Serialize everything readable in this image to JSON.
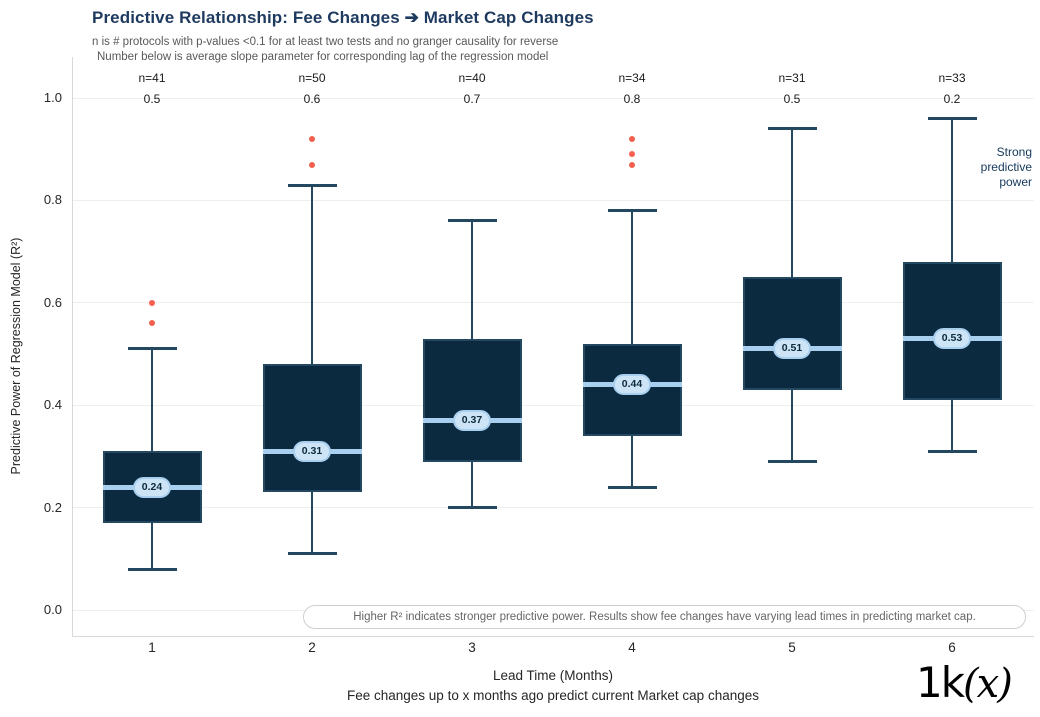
{
  "header": {
    "title": "Predictive Relationship: Fee Changes ➔ Market Cap Changes",
    "subtitle_line1": "n is # protocols with p-values <0.1 for at least two tests and no granger causality for reverse",
    "subtitle_line2": "Number below is average slope parameter for corresponding lag of the regression model"
  },
  "chart_data": {
    "type": "box",
    "title": "Predictive Relationship: Fee Changes ➔ Market Cap Changes",
    "xlabel": "Lead Time (Months)",
    "xlabel_sub": "Fee changes up to x months ago predict current Market cap changes",
    "ylabel": "Predictive Power of Regression Model (R²)",
    "ylim": [
      0.0,
      1.0
    ],
    "yticks": [
      0.0,
      0.2,
      0.4,
      0.6,
      0.8,
      1.0
    ],
    "grid": true,
    "legend_position": "none",
    "categories": [
      "1",
      "2",
      "3",
      "4",
      "5",
      "6"
    ],
    "boxes": [
      {
        "x": "1",
        "n_label": "n=41",
        "slope_label": "0.5",
        "whisker_low": 0.08,
        "q1": 0.17,
        "median": 0.24,
        "q3": 0.31,
        "whisker_high": 0.51,
        "outliers": [
          0.56,
          0.6
        ]
      },
      {
        "x": "2",
        "n_label": "n=50",
        "slope_label": "0.6",
        "whisker_low": 0.11,
        "q1": 0.23,
        "median": 0.31,
        "q3": 0.48,
        "whisker_high": 0.83,
        "outliers": [
          0.87,
          0.92
        ]
      },
      {
        "x": "3",
        "n_label": "n=40",
        "slope_label": "0.7",
        "whisker_low": 0.2,
        "q1": 0.29,
        "median": 0.37,
        "q3": 0.53,
        "whisker_high": 0.76,
        "outliers": []
      },
      {
        "x": "4",
        "n_label": "n=34",
        "slope_label": "0.8",
        "whisker_low": 0.24,
        "q1": 0.34,
        "median": 0.44,
        "q3": 0.52,
        "whisker_high": 0.78,
        "outliers": [
          0.87,
          0.89,
          0.92
        ]
      },
      {
        "x": "5",
        "n_label": "n=31",
        "slope_label": "0.5",
        "whisker_low": 0.29,
        "q1": 0.43,
        "median": 0.51,
        "q3": 0.65,
        "whisker_high": 0.94,
        "outliers": []
      },
      {
        "x": "6",
        "n_label": "n=33",
        "slope_label": "0.2",
        "whisker_low": 0.31,
        "q1": 0.41,
        "median": 0.53,
        "q3": 0.68,
        "whisker_high": 0.96,
        "outliers": []
      }
    ],
    "annotations": {
      "strong_note_lines": [
        "Strong",
        "predictive",
        "power"
      ],
      "footnote": "Higher R² indicates stronger predictive power. Results show fee changes have varying lead times in predicting market cap."
    }
  },
  "colors": {
    "box_fill": "#0b2a3f",
    "box_line": "#23485f",
    "median_line": "#a9cfee",
    "median_pill_bg": "#cde4f6",
    "outlier": "#f4604f",
    "title_navy": "#1e3a5f",
    "annotation_navy": "#15395c",
    "grid": "#efefef",
    "axis": "#d8d8d8"
  },
  "footer": {
    "logo_1k": "1k",
    "logo_x": "(x)"
  }
}
